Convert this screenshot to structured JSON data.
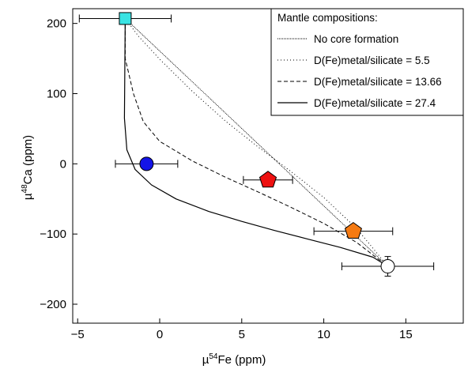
{
  "chart_data": {
    "type": "scatter",
    "title": "",
    "xlabel": {
      "prefix": "µ",
      "sup": "54",
      "suffix": "Fe (ppm)"
    },
    "ylabel": {
      "prefix": "µ",
      "sup": "48",
      "suffix": "Ca (ppm)"
    },
    "xlim": [
      -5.3,
      18.5
    ],
    "ylim": [
      -227,
      221
    ],
    "xticks": [
      -5,
      0,
      5,
      10,
      15
    ],
    "yticks": [
      200,
      100,
      0,
      -100,
      -200
    ],
    "xtick_labels": [
      "−5",
      "0",
      "5",
      "10",
      "15"
    ],
    "ytick_labels": [
      "200",
      "100",
      "0",
      "−100",
      "−200"
    ],
    "grid": false,
    "legend": {
      "placement": "top-right",
      "title": "Mantle compositions:",
      "entries": [
        {
          "label": "No core formation",
          "style": "dotted-fine"
        },
        {
          "label": "D(Fe)metal/silicate = 5.5",
          "style": "dotted"
        },
        {
          "label": "D(Fe)metal/silicate = 13.66",
          "style": "dashed"
        },
        {
          "label": "D(Fe)metal/silicate = 27.4",
          "style": "solid"
        }
      ]
    },
    "series": [
      {
        "style": "dotted-fine",
        "points": [
          [
            -2.1,
            207
          ],
          [
            13.9,
            -146
          ]
        ]
      },
      {
        "style": "dotted",
        "points": [
          [
            -2.1,
            207
          ],
          [
            -1.3,
            182
          ],
          [
            0,
            149
          ],
          [
            2,
            103
          ],
          [
            4,
            61
          ],
          [
            6,
            24
          ],
          [
            8,
            -11
          ],
          [
            10,
            -48
          ],
          [
            12,
            -92
          ],
          [
            13.9,
            -146
          ]
        ]
      },
      {
        "style": "dashed",
        "points": [
          [
            -2.1,
            207
          ],
          [
            -2.1,
            150
          ],
          [
            -1.6,
            100
          ],
          [
            -1.0,
            60
          ],
          [
            0,
            32
          ],
          [
            2,
            4
          ],
          [
            4,
            -19
          ],
          [
            6,
            -40
          ],
          [
            8,
            -62
          ],
          [
            10,
            -85
          ],
          [
            12,
            -112
          ],
          [
            13.9,
            -146
          ]
        ]
      },
      {
        "style": "solid",
        "points": [
          [
            -2.1,
            207
          ],
          [
            -2.15,
            65
          ],
          [
            -2.0,
            20
          ],
          [
            -1.5,
            -8
          ],
          [
            -0.5,
            -30
          ],
          [
            1,
            -50
          ],
          [
            3,
            -68
          ],
          [
            5,
            -82
          ],
          [
            7,
            -95
          ],
          [
            9,
            -107
          ],
          [
            11,
            -119
          ],
          [
            13,
            -133
          ],
          [
            13.9,
            -146
          ]
        ]
      }
    ],
    "points": [
      {
        "x": -2.1,
        "y": 207,
        "xerr": 2.8,
        "yerr": 0,
        "marker": "square",
        "color": "#39e3e3"
      },
      {
        "x": -0.8,
        "y": 0,
        "xerr": 1.9,
        "yerr": 0,
        "marker": "circle",
        "color": "#1414e8"
      },
      {
        "x": 6.6,
        "y": -23,
        "xerr": 1.5,
        "yerr": 0,
        "marker": "pentagon",
        "color": "#ee1111"
      },
      {
        "x": 11.8,
        "y": -96,
        "xerr": 2.4,
        "yerr": 0,
        "marker": "pentagon",
        "color": "#f57a12"
      },
      {
        "x": 13.9,
        "y": -146,
        "xerr": 2.8,
        "yerr": 14,
        "marker": "circle",
        "color": "#ffffff"
      }
    ]
  }
}
